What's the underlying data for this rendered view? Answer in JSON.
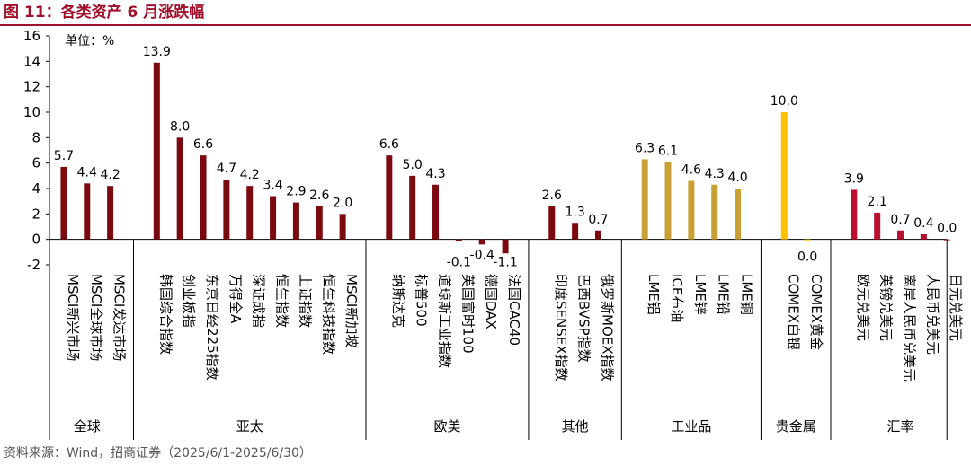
{
  "header": {
    "title": "图 11：各类资产 6 月涨跌幅"
  },
  "footer": {
    "source": "资料来源：Wind，招商证券（2025/6/1-2025/6/30）"
  },
  "chart_data": {
    "type": "bar",
    "unit_label": "单位：%",
    "ylim": [
      -2,
      16
    ],
    "y_ticks": [
      -2,
      0,
      2,
      4,
      6,
      8,
      10,
      12,
      14,
      16
    ],
    "grid": false,
    "groups": [
      {
        "name": "全球",
        "color": "#7b0a10",
        "items": [
          {
            "label": "MSCI新兴市场",
            "value": 5.7
          },
          {
            "label": "MSCI全球市场",
            "value": 4.4
          },
          {
            "label": "MSCI发达市场",
            "value": 4.2
          }
        ]
      },
      {
        "name": "亚太",
        "color": "#7b0a10",
        "items": [
          {
            "label": "韩国综合指数",
            "value": 13.9
          },
          {
            "label": "创业板指",
            "value": 8.0
          },
          {
            "label": "东京日经225指数",
            "value": 6.6
          },
          {
            "label": "万得全A",
            "value": 4.7
          },
          {
            "label": "深证成指",
            "value": 4.2
          },
          {
            "label": "恒生指数",
            "value": 3.4
          },
          {
            "label": "上证指数",
            "value": 2.9
          },
          {
            "label": "恒生科技指数",
            "value": 2.6
          },
          {
            "label": "MSCI新加坡",
            "value": 2.0
          }
        ]
      },
      {
        "name": "欧美",
        "color": "#7b0a10",
        "items": [
          {
            "label": "纳斯达克",
            "value": 6.6
          },
          {
            "label": "标普500",
            "value": 5.0
          },
          {
            "label": "道琼斯工业指数",
            "value": 4.3
          },
          {
            "label": "英国富时100",
            "value": -0.1
          },
          {
            "label": "德国DAX",
            "value": -0.4
          },
          {
            "label": "法国CAC40",
            "value": -1.1
          }
        ]
      },
      {
        "name": "其他",
        "color": "#7b0a10",
        "items": [
          {
            "label": "印度SENSEX指数",
            "value": 2.6
          },
          {
            "label": "巴西BVSP指数",
            "value": 1.3
          },
          {
            "label": "俄罗斯MOEX指数",
            "value": 0.7
          }
        ]
      },
      {
        "name": "工业品",
        "color": "#c9a033",
        "items": [
          {
            "label": "LME铝",
            "value": 6.3
          },
          {
            "label": "ICE布油",
            "value": 6.1
          },
          {
            "label": "LME锌",
            "value": 4.6
          },
          {
            "label": "LME铅",
            "value": 4.3
          },
          {
            "label": "LME铜",
            "value": 4.0
          }
        ]
      },
      {
        "name": "贵金属",
        "color": "#ffc000",
        "items": [
          {
            "label": "COMEX白银",
            "value": 10.0
          },
          {
            "label": "COMEX黄金",
            "value": 0.0
          }
        ]
      },
      {
        "name": "汇率",
        "color": "#b8102e",
        "items": [
          {
            "label": "欧元兑美元",
            "value": 3.9
          },
          {
            "label": "英镑兑美元",
            "value": 2.1
          },
          {
            "label": "离岸人民币兑美元",
            "value": 0.7
          },
          {
            "label": "人民币兑美元",
            "value": 0.4
          },
          {
            "label": "日元兑美元",
            "value": 0.0
          }
        ]
      }
    ]
  }
}
